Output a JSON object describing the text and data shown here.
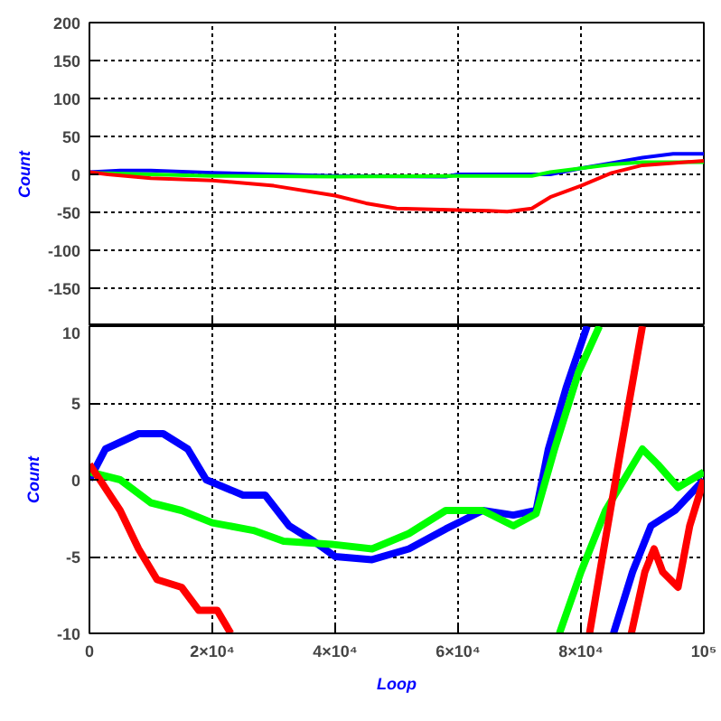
{
  "chart_data": [
    {
      "type": "line",
      "ylabel": "Count",
      "xlim": [
        0,
        100000
      ],
      "ylim": [
        -200,
        200
      ],
      "xticks": [
        {
          "value": 20000,
          "label": null
        },
        {
          "value": 40000,
          "label": null
        },
        {
          "value": 60000,
          "label": null
        },
        {
          "value": 80000,
          "label": null
        }
      ],
      "yticks": [
        {
          "value": -200,
          "label": null
        },
        -150,
        -100,
        -50,
        0,
        50,
        100,
        150,
        200
      ],
      "grid": true,
      "tick_labels": "y",
      "marker": "none",
      "line_style": "solid",
      "series": [
        {
          "color": "#0000ff",
          "x": [
            0,
            5000,
            10000,
            20000,
            40000,
            58000,
            60000,
            75000,
            80000,
            85000,
            90000,
            95000,
            100000
          ],
          "values": [
            3,
            5,
            5,
            2,
            -2,
            -3,
            0,
            0,
            8,
            15,
            22,
            27,
            27
          ]
        },
        {
          "color": "#00ff00",
          "x": [
            0,
            10000,
            20000,
            40000,
            60000,
            72000,
            75000,
            80000,
            85000,
            90000,
            100000
          ],
          "values": [
            2,
            0,
            -2,
            -3,
            -2,
            -2,
            3,
            8,
            13,
            16,
            16
          ]
        },
        {
          "color": "#ff0000",
          "x": [
            0,
            3000,
            10000,
            20000,
            30000,
            40000,
            45000,
            50000,
            60000,
            65000,
            68000,
            72000,
            75000,
            80000,
            85000,
            90000,
            95000,
            100000
          ],
          "values": [
            3,
            0,
            -5,
            -8,
            -15,
            -28,
            -38,
            -45,
            -47,
            -48,
            -49,
            -45,
            -30,
            -15,
            2,
            12,
            15,
            18
          ]
        }
      ]
    },
    {
      "type": "line",
      "ylabel": "Count",
      "xlabel": "Loop",
      "xlim": [
        0,
        100000
      ],
      "ylim": [
        -10,
        10
      ],
      "xticks": [
        0,
        {
          "value": 20000,
          "label": "2×10⁴"
        },
        {
          "value": 40000,
          "label": "4×10⁴"
        },
        {
          "value": 60000,
          "label": "6×10⁴"
        },
        {
          "value": 80000,
          "label": "8×10⁴"
        },
        {
          "value": 100000,
          "label": "10⁵"
        }
      ],
      "yticks": [
        -10,
        -5,
        0,
        5,
        10
      ],
      "grid": true,
      "marker": "none",
      "line_style": "solid",
      "series": [
        {
          "color": "#0000ff",
          "x": [
            0,
            2600,
            8000,
            12000,
            16000,
            19000,
            25000,
            28600,
            32500,
            36500,
            40000,
            46000,
            52000,
            58000,
            64000,
            69000,
            72700,
            74700,
            77600,
            81000,
            83000,
            85300,
            88400,
            91400,
            95300,
            100000
          ],
          "values": [
            0,
            2,
            3,
            3,
            2,
            0,
            -1,
            -1,
            -3,
            -4,
            -5,
            -5.2,
            -4.5,
            -3.2,
            -2,
            -2.3,
            -2,
            2,
            6,
            10,
            null,
            -10,
            -6,
            -3,
            -2,
            0
          ]
        },
        {
          "color": "#00ff00",
          "x": [
            0,
            5000,
            10000,
            15000,
            20000,
            26700,
            31600,
            39400,
            46000,
            52000,
            58000,
            64000,
            69000,
            72700,
            75700,
            79600,
            83000,
            80000,
            76500,
            80000,
            84000,
            90000,
            92500,
            95800,
            100000
          ],
          "values": [
            0.5,
            0,
            -1.5,
            -2,
            -2.8,
            -3.3,
            -4,
            -4.2,
            -4.5,
            -3.5,
            -2,
            -2,
            -3,
            -2.2,
            2,
            7,
            10,
            null,
            -10,
            -6,
            -2,
            2,
            1,
            -0.5,
            0.5
          ]
        },
        {
          "color": "#ff0000",
          "x": [
            0,
            1700,
            5000,
            8000,
            11000,
            15000,
            17800,
            20800,
            23000,
            50000,
            81400,
            83500,
            86500,
            90000,
            89000,
            88200,
            90400,
            91900,
            93300,
            95800,
            97700,
            100000
          ],
          "values": [
            1,
            0,
            -2,
            -4.5,
            -6.5,
            -7,
            -8.5,
            -8.5,
            -10,
            null,
            -10,
            -5,
            2,
            10,
            null,
            -10,
            -6,
            -4.5,
            -6,
            -7,
            -3,
            0
          ]
        }
      ]
    }
  ]
}
